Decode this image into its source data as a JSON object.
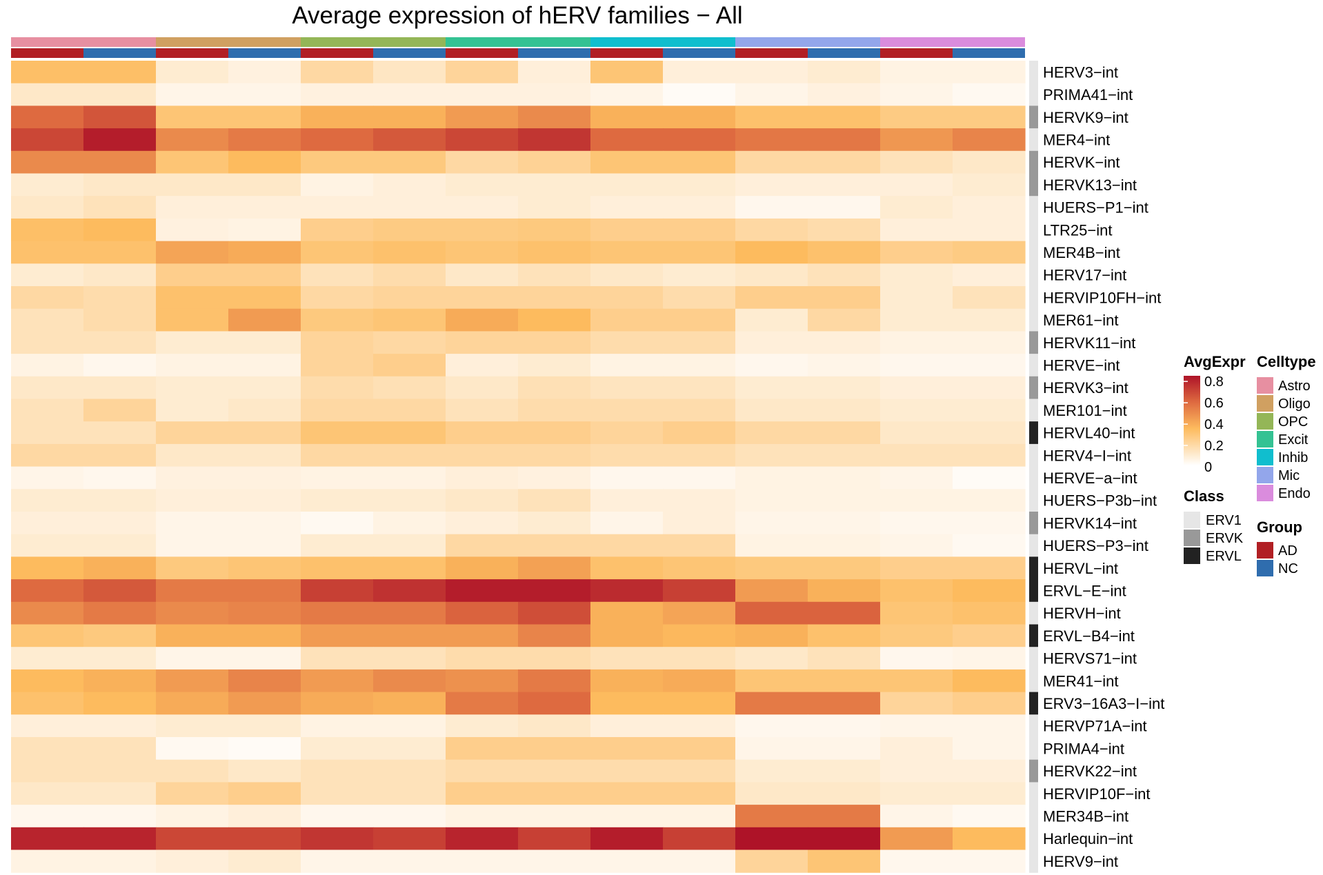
{
  "chart_data": {
    "type": "heatmap",
    "title": "Average expression of hERV families − All",
    "celltypes": [
      {
        "name": "Astro",
        "color": "#E78FA1"
      },
      {
        "name": "Oligo",
        "color": "#D0A061"
      },
      {
        "name": "OPC",
        "color": "#94B657"
      },
      {
        "name": "Excit",
        "color": "#34C293"
      },
      {
        "name": "Inhib",
        "color": "#10BECE"
      },
      {
        "name": "Mic",
        "color": "#93A6EB"
      },
      {
        "name": "Endo",
        "color": "#DA8CDD"
      }
    ],
    "groups": [
      {
        "name": "AD",
        "color": "#B11F24"
      },
      {
        "name": "NC",
        "color": "#2F6DAE"
      }
    ],
    "columns": [
      {
        "celltype": "Astro",
        "group": "AD"
      },
      {
        "celltype": "Astro",
        "group": "NC"
      },
      {
        "celltype": "Oligo",
        "group": "AD"
      },
      {
        "celltype": "Oligo",
        "group": "NC"
      },
      {
        "celltype": "OPC",
        "group": "AD"
      },
      {
        "celltype": "OPC",
        "group": "NC"
      },
      {
        "celltype": "Excit",
        "group": "AD"
      },
      {
        "celltype": "Excit",
        "group": "NC"
      },
      {
        "celltype": "Inhib",
        "group": "AD"
      },
      {
        "celltype": "Inhib",
        "group": "NC"
      },
      {
        "celltype": "Mic",
        "group": "AD"
      },
      {
        "celltype": "Mic",
        "group": "NC"
      },
      {
        "celltype": "Endo",
        "group": "AD"
      },
      {
        "celltype": "Endo",
        "group": "NC"
      }
    ],
    "classes": [
      {
        "name": "ERV1",
        "color": "#E6E6E6"
      },
      {
        "name": "ERVK",
        "color": "#999999"
      },
      {
        "name": "ERVL",
        "color": "#222222"
      }
    ],
    "rows": [
      {
        "name": "HERV3−int",
        "class": "ERV1",
        "values": [
          0.33,
          0.33,
          0.1,
          0.07,
          0.2,
          0.13,
          0.22,
          0.08,
          0.3,
          0.08,
          0.08,
          0.1,
          0.06,
          0.06
        ]
      },
      {
        "name": "PRIMA41−int",
        "class": "ERV1",
        "values": [
          0.12,
          0.12,
          0.05,
          0.05,
          0.07,
          0.07,
          0.07,
          0.07,
          0.05,
          0.02,
          0.05,
          0.07,
          0.05,
          0.03
        ]
      },
      {
        "name": "HERVK9−int",
        "class": "ERVK",
        "values": [
          0.6,
          0.66,
          0.3,
          0.3,
          0.38,
          0.38,
          0.45,
          0.5,
          0.38,
          0.38,
          0.32,
          0.32,
          0.27,
          0.27
        ]
      },
      {
        "name": "MER4−int",
        "class": "ERV1",
        "values": [
          0.7,
          0.82,
          0.5,
          0.55,
          0.6,
          0.65,
          0.7,
          0.75,
          0.6,
          0.6,
          0.56,
          0.56,
          0.46,
          0.52
        ]
      },
      {
        "name": "HERVK−int",
        "class": "ERVK",
        "values": [
          0.5,
          0.5,
          0.3,
          0.35,
          0.28,
          0.28,
          0.2,
          0.23,
          0.3,
          0.3,
          0.2,
          0.2,
          0.15,
          0.12
        ]
      },
      {
        "name": "HERVK13−int",
        "class": "ERVK",
        "values": [
          0.1,
          0.12,
          0.12,
          0.12,
          0.06,
          0.08,
          0.1,
          0.1,
          0.1,
          0.1,
          0.08,
          0.08,
          0.08,
          0.1
        ]
      },
      {
        "name": "HUERS−P1−int",
        "class": "ERV1",
        "values": [
          0.12,
          0.15,
          0.08,
          0.08,
          0.08,
          0.08,
          0.08,
          0.1,
          0.08,
          0.08,
          0.04,
          0.04,
          0.1,
          0.08
        ]
      },
      {
        "name": "LTR25−int",
        "class": "ERV1",
        "values": [
          0.33,
          0.35,
          0.07,
          0.06,
          0.25,
          0.27,
          0.27,
          0.28,
          0.25,
          0.25,
          0.2,
          0.18,
          0.08,
          0.08
        ]
      },
      {
        "name": "MER4B−int",
        "class": "ERV1",
        "values": [
          0.32,
          0.32,
          0.42,
          0.4,
          0.3,
          0.32,
          0.3,
          0.32,
          0.3,
          0.3,
          0.35,
          0.32,
          0.25,
          0.27
        ]
      },
      {
        "name": "HERV17−int",
        "class": "ERV1",
        "values": [
          0.1,
          0.12,
          0.25,
          0.25,
          0.15,
          0.18,
          0.12,
          0.15,
          0.12,
          0.1,
          0.12,
          0.15,
          0.1,
          0.08
        ]
      },
      {
        "name": "HERVIP10FH−int",
        "class": "ERV1",
        "values": [
          0.2,
          0.18,
          0.32,
          0.32,
          0.2,
          0.22,
          0.22,
          0.22,
          0.22,
          0.18,
          0.25,
          0.25,
          0.1,
          0.15
        ]
      },
      {
        "name": "MER61−int",
        "class": "ERV1",
        "values": [
          0.15,
          0.18,
          0.32,
          0.45,
          0.28,
          0.3,
          0.4,
          0.35,
          0.25,
          0.25,
          0.1,
          0.2,
          0.1,
          0.1
        ]
      },
      {
        "name": "HERVK11−int",
        "class": "ERVK",
        "values": [
          0.15,
          0.15,
          0.1,
          0.1,
          0.22,
          0.2,
          0.22,
          0.22,
          0.18,
          0.18,
          0.08,
          0.08,
          0.06,
          0.06
        ]
      },
      {
        "name": "HERVE−int",
        "class": "ERV1",
        "values": [
          0.06,
          0.04,
          0.06,
          0.06,
          0.22,
          0.25,
          0.08,
          0.1,
          0.06,
          0.06,
          0.04,
          0.05,
          0.04,
          0.04
        ]
      },
      {
        "name": "HERVK3−int",
        "class": "ERVK",
        "values": [
          0.12,
          0.12,
          0.1,
          0.1,
          0.18,
          0.16,
          0.12,
          0.16,
          0.14,
          0.14,
          0.1,
          0.1,
          0.08,
          0.08
        ]
      },
      {
        "name": "MER101−int",
        "class": "ERV1",
        "values": [
          0.15,
          0.22,
          0.1,
          0.12,
          0.2,
          0.2,
          0.15,
          0.18,
          0.18,
          0.18,
          0.12,
          0.12,
          0.1,
          0.1
        ]
      },
      {
        "name": "HERVL40−int",
        "class": "ERVL",
        "values": [
          0.15,
          0.15,
          0.22,
          0.22,
          0.3,
          0.3,
          0.25,
          0.25,
          0.22,
          0.25,
          0.2,
          0.2,
          0.12,
          0.12
        ]
      },
      {
        "name": "HERV4−I−int",
        "class": "ERV1",
        "values": [
          0.2,
          0.2,
          0.12,
          0.12,
          0.2,
          0.2,
          0.2,
          0.2,
          0.18,
          0.18,
          0.15,
          0.15,
          0.15,
          0.15
        ]
      },
      {
        "name": "HERVE−a−int",
        "class": "ERV1",
        "values": [
          0.05,
          0.04,
          0.07,
          0.07,
          0.06,
          0.06,
          0.08,
          0.07,
          0.04,
          0.04,
          0.06,
          0.06,
          0.05,
          0.02
        ]
      },
      {
        "name": "HUERS−P3b−int",
        "class": "ERV1",
        "values": [
          0.1,
          0.1,
          0.08,
          0.08,
          0.1,
          0.1,
          0.12,
          0.15,
          0.08,
          0.08,
          0.06,
          0.06,
          0.06,
          0.06
        ]
      },
      {
        "name": "HERVK14−int",
        "class": "ERVK",
        "values": [
          0.08,
          0.08,
          0.05,
          0.05,
          0.03,
          0.06,
          0.08,
          0.1,
          0.05,
          0.08,
          0.05,
          0.05,
          0.04,
          0.04
        ]
      },
      {
        "name": "HUERS−P3−int",
        "class": "ERV1",
        "values": [
          0.1,
          0.1,
          0.05,
          0.05,
          0.1,
          0.1,
          0.2,
          0.2,
          0.2,
          0.2,
          0.06,
          0.06,
          0.05,
          0.03
        ]
      },
      {
        "name": "HERVL−int",
        "class": "ERVL",
        "values": [
          0.35,
          0.38,
          0.28,
          0.3,
          0.32,
          0.32,
          0.38,
          0.43,
          0.32,
          0.3,
          0.28,
          0.28,
          0.25,
          0.25
        ]
      },
      {
        "name": "ERVL−E−int",
        "class": "ERVL",
        "values": [
          0.6,
          0.65,
          0.55,
          0.55,
          0.72,
          0.76,
          0.82,
          0.82,
          0.78,
          0.72,
          0.45,
          0.38,
          0.32,
          0.35
        ]
      },
      {
        "name": "HERVH−int",
        "class": "ERV1",
        "values": [
          0.5,
          0.55,
          0.5,
          0.52,
          0.55,
          0.55,
          0.62,
          0.68,
          0.38,
          0.42,
          0.62,
          0.62,
          0.3,
          0.32
        ]
      },
      {
        "name": "ERVL−B4−int",
        "class": "ERVL",
        "values": [
          0.3,
          0.28,
          0.38,
          0.38,
          0.45,
          0.45,
          0.45,
          0.52,
          0.38,
          0.36,
          0.38,
          0.32,
          0.28,
          0.25
        ]
      },
      {
        "name": "HERVS71−int",
        "class": "ERV1",
        "values": [
          0.1,
          0.1,
          0.05,
          0.05,
          0.15,
          0.15,
          0.18,
          0.18,
          0.15,
          0.15,
          0.12,
          0.15,
          0.04,
          0.05
        ]
      },
      {
        "name": "MER41−int",
        "class": "ERV1",
        "values": [
          0.35,
          0.38,
          0.45,
          0.52,
          0.45,
          0.5,
          0.48,
          0.55,
          0.38,
          0.4,
          0.3,
          0.3,
          0.3,
          0.35
        ]
      },
      {
        "name": "ERV3−16A3−I−int",
        "class": "ERVL",
        "values": [
          0.32,
          0.35,
          0.4,
          0.45,
          0.4,
          0.38,
          0.55,
          0.6,
          0.35,
          0.35,
          0.55,
          0.55,
          0.22,
          0.25
        ]
      },
      {
        "name": "HERVP71A−int",
        "class": "ERV1",
        "values": [
          0.08,
          0.08,
          0.1,
          0.1,
          0.06,
          0.06,
          0.1,
          0.12,
          0.08,
          0.08,
          0.04,
          0.04,
          0.05,
          0.05
        ]
      },
      {
        "name": "PRIMA4−int",
        "class": "ERV1",
        "values": [
          0.15,
          0.15,
          0.03,
          0.02,
          0.1,
          0.1,
          0.25,
          0.25,
          0.25,
          0.25,
          0.05,
          0.05,
          0.08,
          0.05
        ]
      },
      {
        "name": "HERVK22−int",
        "class": "ERVK",
        "values": [
          0.15,
          0.15,
          0.15,
          0.12,
          0.15,
          0.15,
          0.18,
          0.18,
          0.18,
          0.18,
          0.1,
          0.1,
          0.08,
          0.08
        ]
      },
      {
        "name": "HERVIP10F−int",
        "class": "ERV1",
        "values": [
          0.12,
          0.12,
          0.22,
          0.25,
          0.15,
          0.15,
          0.25,
          0.25,
          0.25,
          0.25,
          0.12,
          0.12,
          0.1,
          0.1
        ]
      },
      {
        "name": "MER34B−int",
        "class": "ERV1",
        "values": [
          0.04,
          0.04,
          0.06,
          0.08,
          0.04,
          0.04,
          0.06,
          0.06,
          0.06,
          0.06,
          0.55,
          0.55,
          0.05,
          0.03
        ]
      },
      {
        "name": "Harlequin−int",
        "class": "ERV1",
        "values": [
          0.8,
          0.8,
          0.7,
          0.7,
          0.75,
          0.72,
          0.8,
          0.72,
          0.82,
          0.72,
          0.85,
          0.85,
          0.45,
          0.35
        ]
      },
      {
        "name": "HERV9−int",
        "class": "ERV1",
        "values": [
          0.06,
          0.06,
          0.08,
          0.1,
          0.05,
          0.05,
          0.05,
          0.05,
          0.05,
          0.05,
          0.22,
          0.3,
          0.04,
          0.04
        ]
      }
    ],
    "color_scale": {
      "name": "AvgExpr",
      "ticks": [
        0,
        0.2,
        0.4,
        0.6,
        0.8
      ],
      "tick_labels": [
        "0",
        "0.2",
        "0.4",
        "0.6",
        "0.8"
      ],
      "stops": [
        {
          "value": 0.0,
          "color": "#FFFFFF"
        },
        {
          "value": 0.35,
          "color": "#FDBB5E"
        },
        {
          "value": 0.6,
          "color": "#DE6A40"
        },
        {
          "value": 0.85,
          "color": "#AE1328"
        }
      ]
    },
    "legends": {
      "avgexpr_title": "AvgExpr",
      "class_title": "Class",
      "celltype_title": "Celltype",
      "group_title": "Group"
    }
  }
}
